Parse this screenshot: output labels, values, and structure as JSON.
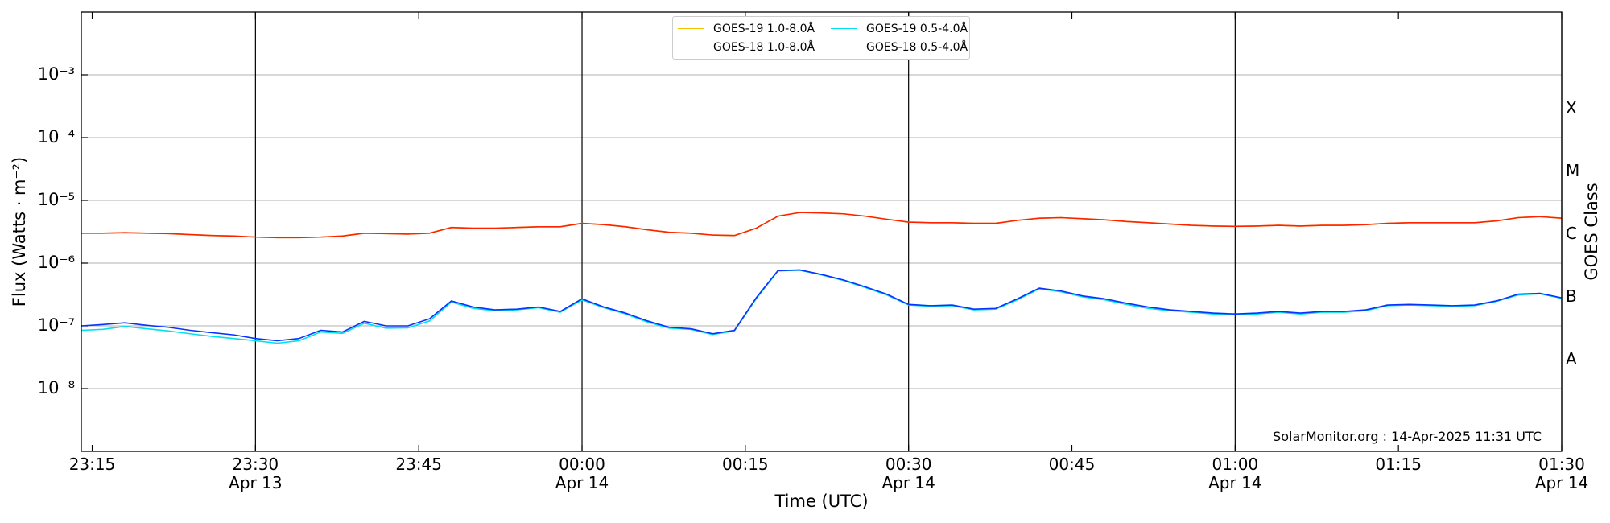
{
  "chart_data": {
    "type": "line",
    "log_y": true,
    "grid": "y",
    "legend": "upper center",
    "xlabel": "Time (UTC)",
    "ylabel": "Flux (Watts · m⁻²)",
    "y2label": "GOES Class",
    "annotation": "SolarMonitor.org : 14-Apr-2025 11:31 UTC",
    "xlim": [
      "2025-04-13T23:14",
      "2025-04-14T01:30"
    ],
    "xticks": [
      {
        "value": "2025-04-13T23:15",
        "label": "23:15"
      },
      {
        "value": "2025-04-13T23:30",
        "label": "23:30\nApr 13"
      },
      {
        "value": "2025-04-13T23:45",
        "label": "23:45"
      },
      {
        "value": "2025-04-14T00:00",
        "label": "00:00\nApr 14"
      },
      {
        "value": "2025-04-14T00:15",
        "label": "00:15"
      },
      {
        "value": "2025-04-14T00:30",
        "label": "00:30\nApr 14"
      },
      {
        "value": "2025-04-14T00:45",
        "label": "00:45"
      },
      {
        "value": "2025-04-14T01:00",
        "label": "01:00\nApr 14"
      },
      {
        "value": "2025-04-14T01:15",
        "label": "01:15"
      },
      {
        "value": "2025-04-14T01:30",
        "label": "01:30\nApr 14"
      }
    ],
    "ylim": [
      1e-09,
      0.01
    ],
    "yticks": [
      {
        "value": 1e-08,
        "label": "10⁻⁸"
      },
      {
        "value": 1e-07,
        "label": "10⁻⁷"
      },
      {
        "value": 1e-06,
        "label": "10⁻⁶"
      },
      {
        "value": 1e-05,
        "label": "10⁻⁵"
      },
      {
        "value": 0.0001,
        "label": "10⁻⁴"
      },
      {
        "value": 0.001,
        "label": "10⁻³"
      }
    ],
    "y2lim": [
      1e-09,
      0.01
    ],
    "y2ticks": [
      {
        "value": 3e-08,
        "label": "A"
      },
      {
        "value": 3e-07,
        "label": "B"
      },
      {
        "value": 3e-06,
        "label": "C"
      },
      {
        "value": 3e-05,
        "label": "M"
      },
      {
        "value": 0.0003,
        "label": "X"
      }
    ],
    "x": [
      "2025-04-13T23:14",
      "2025-04-13T23:16",
      "2025-04-13T23:18",
      "2025-04-13T23:20",
      "2025-04-13T23:22",
      "2025-04-13T23:24",
      "2025-04-13T23:26",
      "2025-04-13T23:28",
      "2025-04-13T23:30",
      "2025-04-13T23:32",
      "2025-04-13T23:34",
      "2025-04-13T23:36",
      "2025-04-13T23:38",
      "2025-04-13T23:40",
      "2025-04-13T23:42",
      "2025-04-13T23:44",
      "2025-04-13T23:46",
      "2025-04-13T23:48",
      "2025-04-13T23:50",
      "2025-04-13T23:52",
      "2025-04-13T23:54",
      "2025-04-13T23:56",
      "2025-04-13T23:58",
      "2025-04-14T00:00",
      "2025-04-14T00:02",
      "2025-04-14T00:04",
      "2025-04-14T00:06",
      "2025-04-14T00:08",
      "2025-04-14T00:10",
      "2025-04-14T00:12",
      "2025-04-14T00:14",
      "2025-04-14T00:16",
      "2025-04-14T00:18",
      "2025-04-14T00:20",
      "2025-04-14T00:22",
      "2025-04-14T00:24",
      "2025-04-14T00:26",
      "2025-04-14T00:28",
      "2025-04-14T00:30",
      "2025-04-14T00:32",
      "2025-04-14T00:34",
      "2025-04-14T00:36",
      "2025-04-14T00:38",
      "2025-04-14T00:40",
      "2025-04-14T00:42",
      "2025-04-14T00:44",
      "2025-04-14T00:46",
      "2025-04-14T00:48",
      "2025-04-14T00:50",
      "2025-04-14T00:52",
      "2025-04-14T00:54",
      "2025-04-14T00:56",
      "2025-04-14T00:58",
      "2025-04-14T01:00",
      "2025-04-14T01:02",
      "2025-04-14T01:04",
      "2025-04-14T01:06",
      "2025-04-14T01:08",
      "2025-04-14T01:10",
      "2025-04-14T01:12",
      "2025-04-14T01:14",
      "2025-04-14T01:16",
      "2025-04-14T01:18",
      "2025-04-14T01:20",
      "2025-04-14T01:22",
      "2025-04-14T01:24",
      "2025-04-14T01:26",
      "2025-04-14T01:28",
      "2025-04-14T01:30"
    ],
    "series": [
      {
        "name": "GOES-19 1.0-8.0Å",
        "color": "#f2c200",
        "values": [
          3e-06,
          3e-06,
          3.05e-06,
          3e-06,
          2.95e-06,
          2.85e-06,
          2.75e-06,
          2.7e-06,
          2.6e-06,
          2.55e-06,
          2.55e-06,
          2.6e-06,
          2.7e-06,
          3e-06,
          2.95e-06,
          2.9e-06,
          3e-06,
          3.7e-06,
          3.6e-06,
          3.6e-06,
          3.7e-06,
          3.8e-06,
          3.8e-06,
          4.3e-06,
          4.1e-06,
          3.8e-06,
          3.4e-06,
          3.1e-06,
          3e-06,
          2.8e-06,
          2.75e-06,
          3.6e-06,
          5.6e-06,
          6.4e-06,
          6.3e-06,
          6.1e-06,
          5.6e-06,
          5e-06,
          4.5e-06,
          4.4e-06,
          4.4e-06,
          4.3e-06,
          4.3e-06,
          4.8e-06,
          5.2e-06,
          5.3e-06,
          5.1e-06,
          4.9e-06,
          4.6e-06,
          4.4e-06,
          4.2e-06,
          4e-06,
          3.9e-06,
          3.85e-06,
          3.9e-06,
          4e-06,
          3.9e-06,
          4e-06,
          4e-06,
          4.1e-06,
          4.3e-06,
          4.4e-06,
          4.4e-06,
          4.4e-06,
          4.4e-06,
          4.7e-06,
          5.3e-06,
          5.5e-06,
          5.2e-06
        ]
      },
      {
        "name": "GOES-18 1.0-8.0Å",
        "color": "#ff2200",
        "values": [
          3e-06,
          3e-06,
          3.05e-06,
          3e-06,
          2.95e-06,
          2.85e-06,
          2.75e-06,
          2.7e-06,
          2.6e-06,
          2.55e-06,
          2.55e-06,
          2.6e-06,
          2.7e-06,
          3e-06,
          2.95e-06,
          2.9e-06,
          3e-06,
          3.7e-06,
          3.6e-06,
          3.6e-06,
          3.7e-06,
          3.8e-06,
          3.8e-06,
          4.3e-06,
          4.1e-06,
          3.8e-06,
          3.4e-06,
          3.1e-06,
          3e-06,
          2.8e-06,
          2.75e-06,
          3.6e-06,
          5.6e-06,
          6.4e-06,
          6.3e-06,
          6.1e-06,
          5.6e-06,
          5e-06,
          4.5e-06,
          4.4e-06,
          4.4e-06,
          4.3e-06,
          4.3e-06,
          4.8e-06,
          5.2e-06,
          5.3e-06,
          5.1e-06,
          4.9e-06,
          4.6e-06,
          4.4e-06,
          4.2e-06,
          4e-06,
          3.9e-06,
          3.85e-06,
          3.9e-06,
          4e-06,
          3.9e-06,
          4e-06,
          4e-06,
          4.1e-06,
          4.3e-06,
          4.4e-06,
          4.4e-06,
          4.4e-06,
          4.4e-06,
          4.7e-06,
          5.3e-06,
          5.5e-06,
          5.2e-06
        ]
      },
      {
        "name": "GOES-19 0.5-4.0Å",
        "color": "#00e0f0",
        "values": [
          8.5e-08,
          8.8e-08,
          9.8e-08,
          9e-08,
          8.3e-08,
          7.5e-08,
          6.8e-08,
          6.3e-08,
          5.8e-08,
          5.3e-08,
          5.8e-08,
          8e-08,
          7.6e-08,
          1.1e-07,
          9.2e-08,
          9.3e-08,
          1.2e-07,
          2.4e-07,
          1.9e-07,
          1.75e-07,
          1.8e-07,
          1.95e-07,
          1.65e-07,
          2.6e-07,
          1.95e-07,
          1.55e-07,
          1.15e-07,
          9.2e-08,
          8.8e-08,
          7.3e-08,
          8.3e-08,
          2.7e-07,
          7.5e-07,
          7.7e-07,
          6.5e-07,
          5.3e-07,
          4.1e-07,
          3.1e-07,
          2.15e-07,
          2.05e-07,
          2.1e-07,
          1.8e-07,
          1.85e-07,
          2.6e-07,
          3.9e-07,
          3.5e-07,
          2.9e-07,
          2.6e-07,
          2.2e-07,
          1.9e-07,
          1.75e-07,
          1.65e-07,
          1.55e-07,
          1.5e-07,
          1.55e-07,
          1.65e-07,
          1.55e-07,
          1.65e-07,
          1.65e-07,
          1.75e-07,
          2.1e-07,
          2.15e-07,
          2.1e-07,
          2.05e-07,
          2.1e-07,
          2.45e-07,
          3.1e-07,
          3.25e-07,
          2.75e-07
        ]
      },
      {
        "name": "GOES-18 0.5-4.0Å",
        "color": "#0a32ff",
        "values": [
          1e-07,
          1.05e-07,
          1.12e-07,
          1.02e-07,
          9.5e-08,
          8.5e-08,
          7.8e-08,
          7.2e-08,
          6.3e-08,
          5.8e-08,
          6.3e-08,
          8.5e-08,
          8e-08,
          1.18e-07,
          1e-07,
          1e-07,
          1.3e-07,
          2.5e-07,
          2e-07,
          1.8e-07,
          1.85e-07,
          2e-07,
          1.7e-07,
          2.7e-07,
          2e-07,
          1.6e-07,
          1.2e-07,
          9.5e-08,
          9e-08,
          7.5e-08,
          8.5e-08,
          2.8e-07,
          7.6e-07,
          7.8e-07,
          6.6e-07,
          5.4e-07,
          4.2e-07,
          3.2e-07,
          2.2e-07,
          2.1e-07,
          2.15e-07,
          1.85e-07,
          1.9e-07,
          2.7e-07,
          4e-07,
          3.6e-07,
          3e-07,
          2.7e-07,
          2.3e-07,
          2e-07,
          1.8e-07,
          1.7e-07,
          1.6e-07,
          1.55e-07,
          1.6e-07,
          1.7e-07,
          1.6e-07,
          1.7e-07,
          1.7e-07,
          1.8e-07,
          2.15e-07,
          2.2e-07,
          2.15e-07,
          2.1e-07,
          2.15e-07,
          2.5e-07,
          3.2e-07,
          3.3e-07,
          2.8e-07
        ]
      }
    ]
  }
}
